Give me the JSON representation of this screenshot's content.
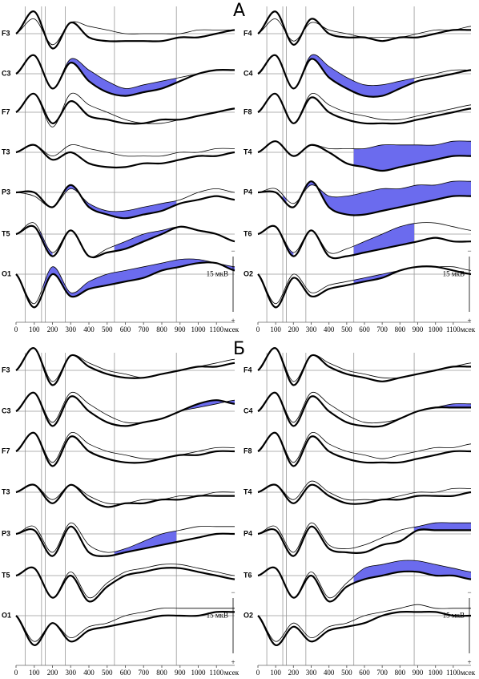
{
  "sections": [
    "А",
    "Б"
  ],
  "chart_data": [
    {
      "type": "line",
      "x": [
        0,
        100,
        200,
        300,
        400,
        500,
        600,
        700,
        800,
        900,
        1000,
        1100,
        1200
      ],
      "xlim": [
        0,
        1200
      ],
      "xticks": [
        0,
        100,
        200,
        300,
        400,
        500,
        600,
        700,
        800,
        900,
        1000,
        1100
      ],
      "xlabel": "мсек",
      "vlines": [
        50,
        140,
        160,
        270,
        540,
        880
      ],
      "line_color": "#000",
      "fill_color": "#6b6bee",
      "scale_value": 15,
      "scale_label": "15 мкВ",
      "scale_minus": "−",
      "scale_plus": "+",
      "channels": [
        {
          "label": "F3",
          "thin": [
            0,
            -4,
            3,
            -3,
            -2,
            -1,
            0,
            0,
            0,
            0,
            -1,
            -1,
            -1
          ],
          "thick": [
            0,
            -6,
            4,
            -3,
            1,
            2,
            2,
            2,
            2,
            1,
            1,
            0,
            -1
          ],
          "shaded": []
        },
        {
          "label": "C3",
          "thin": [
            0,
            -5,
            4,
            -4,
            -1,
            2,
            4,
            3,
            2,
            1,
            0,
            -1,
            -1
          ],
          "thick": [
            0,
            -5,
            4,
            -3,
            2,
            5,
            6,
            5,
            4,
            2,
            0,
            -1,
            -1
          ],
          "shaded": [
            [
              270,
              880
            ]
          ]
        },
        {
          "label": "F7",
          "thin": [
            0,
            -5,
            4,
            -5,
            -2,
            0,
            2,
            3,
            3,
            2,
            1,
            0,
            -1
          ],
          "thick": [
            0,
            -5,
            3,
            -3,
            1,
            2,
            3,
            3,
            2,
            2,
            1,
            0,
            -1
          ],
          "shaded": []
        },
        {
          "label": "T3",
          "thin": [
            0,
            -2,
            1,
            -2,
            -1,
            0,
            1,
            1,
            1,
            0,
            0,
            -1,
            -1
          ],
          "thick": [
            0,
            -2,
            2,
            0,
            3,
            4,
            4,
            3,
            3,
            2,
            1,
            1,
            0
          ],
          "shaded": []
        },
        {
          "label": "P3",
          "thin": [
            0,
            1,
            4,
            -1,
            3,
            5,
            5,
            4,
            3,
            2,
            0,
            -1,
            0
          ],
          "thick": [
            0,
            0,
            4,
            -2,
            4,
            6,
            7,
            6,
            5,
            3,
            2,
            1,
            2
          ],
          "shaded": [
            [
              270,
              880
            ]
          ]
        },
        {
          "label": "T5",
          "thin": [
            0,
            -3,
            5,
            -1,
            6,
            4,
            2,
            0,
            -1,
            -2,
            -1,
            0,
            2
          ],
          "thick": [
            0,
            -2,
            6,
            -1,
            6,
            5,
            4,
            2,
            0,
            -2,
            -1,
            0,
            2
          ],
          "shaded": [
            [
              130,
              200
            ],
            [
              540,
              880
            ]
          ]
        },
        {
          "label": "O1",
          "thin": [
            0,
            8,
            -2,
            5,
            2,
            0,
            -1,
            -2,
            -3,
            -4,
            -4,
            -3,
            -2
          ],
          "thick": [
            0,
            9,
            0,
            6,
            4,
            3,
            2,
            1,
            -1,
            -2,
            -3,
            -3,
            -1
          ],
          "shaded": [
            [
              150,
              1200
            ]
          ]
        }
      ]
    },
    {
      "type": "line",
      "x": [
        0,
        100,
        200,
        300,
        400,
        500,
        600,
        700,
        800,
        900,
        1000,
        1100,
        1200
      ],
      "xlim": [
        0,
        1200
      ],
      "xticks": [
        0,
        100,
        200,
        300,
        400,
        500,
        600,
        700,
        800,
        900,
        1000,
        1100
      ],
      "xlabel": "мсек",
      "vlines": [
        50,
        140,
        160,
        270,
        540,
        880
      ],
      "line_color": "#000",
      "fill_color": "#6b6bee",
      "scale_value": 15,
      "scale_label": "15 мкВ",
      "scale_minus": "−",
      "scale_plus": "+",
      "channels": [
        {
          "label": "F4",
          "thin": [
            0,
            -4,
            2,
            -3,
            -1,
            0,
            1,
            1,
            1,
            0,
            -1,
            -1,
            -2
          ],
          "thick": [
            0,
            -6,
            3,
            -4,
            0,
            1,
            1,
            2,
            1,
            1,
            0,
            -1,
            -1
          ],
          "shaded": []
        },
        {
          "label": "C4",
          "thin": [
            0,
            -5,
            4,
            -5,
            -2,
            1,
            3,
            3,
            2,
            1,
            0,
            -1,
            -1
          ],
          "thick": [
            0,
            -5,
            4,
            -4,
            1,
            4,
            6,
            6,
            4,
            2,
            1,
            0,
            -1
          ],
          "shaded": [
            [
              270,
              880
            ]
          ]
        },
        {
          "label": "F8",
          "thin": [
            0,
            -5,
            3,
            -5,
            -2,
            0,
            1,
            2,
            2,
            1,
            0,
            -1,
            -2
          ],
          "thick": [
            0,
            -5,
            3,
            -4,
            0,
            2,
            3,
            3,
            3,
            2,
            1,
            0,
            -1
          ],
          "shaded": []
        },
        {
          "label": "T4",
          "thin": [
            0,
            -3,
            1,
            -2,
            -1,
            -1,
            -1,
            -2,
            -2,
            -2,
            -2,
            -3,
            -3
          ],
          "thick": [
            0,
            -3,
            1,
            -2,
            0,
            3,
            4,
            5,
            4,
            3,
            2,
            1,
            1
          ],
          "shaded": [
            [
              540,
              1200
            ]
          ]
        },
        {
          "label": "P4",
          "thin": [
            0,
            -1,
            3,
            -2,
            1,
            1,
            0,
            -1,
            -1,
            -2,
            -2,
            -3,
            -3
          ],
          "thick": [
            0,
            0,
            4,
            -3,
            4,
            6,
            6,
            5,
            4,
            3,
            2,
            1,
            1
          ],
          "shaded": [
            [
              140,
              160
            ],
            [
              270,
              1200
            ]
          ]
        },
        {
          "label": "T6",
          "thin": [
            0,
            -2,
            5,
            -1,
            5,
            4,
            2,
            0,
            -2,
            -3,
            -3,
            -2,
            -1
          ],
          "thick": [
            0,
            -2,
            6,
            -1,
            6,
            6,
            5,
            4,
            3,
            2,
            1,
            2,
            2
          ],
          "shaded": [
            [
              140,
              200
            ],
            [
              540,
              880
            ]
          ]
        },
        {
          "label": "O2",
          "thin": [
            0,
            8,
            0,
            5,
            3,
            2,
            1,
            0,
            -1,
            -2,
            -2,
            -2,
            -1
          ],
          "thick": [
            0,
            9,
            1,
            6,
            4,
            3,
            2,
            1,
            -1,
            -2,
            -2,
            -1,
            0
          ],
          "shaded": [
            [
              540,
              880
            ]
          ]
        }
      ]
    },
    {
      "type": "line",
      "x": [
        0,
        100,
        200,
        300,
        400,
        500,
        600,
        700,
        800,
        900,
        1000,
        1100,
        1200
      ],
      "xlim": [
        0,
        1200
      ],
      "xticks": [
        0,
        100,
        200,
        300,
        400,
        500,
        600,
        700,
        800,
        900,
        1000,
        1100
      ],
      "xlabel": "мсек",
      "vlines": [
        50,
        140,
        160,
        270,
        540,
        880
      ],
      "line_color": "#000",
      "fill_color": "#6b6bee",
      "scale_value": 15,
      "scale_label": "15 мкВ",
      "scale_minus": "−",
      "scale_plus": "+",
      "channels": [
        {
          "label": "F3",
          "thin": [
            0,
            -6,
            3,
            -4,
            -2,
            0,
            1,
            2,
            1,
            0,
            -1,
            -2,
            -3
          ],
          "thick": [
            0,
            -6,
            4,
            -4,
            -1,
            1,
            2,
            2,
            1,
            0,
            -1,
            -1,
            -2
          ],
          "shaded": []
        },
        {
          "label": "C3",
          "thin": [
            0,
            -5,
            3,
            -5,
            -2,
            1,
            3,
            3,
            2,
            0,
            -1,
            -2,
            -3
          ],
          "thick": [
            0,
            -5,
            4,
            -4,
            0,
            3,
            4,
            3,
            2,
            0,
            -2,
            -3,
            -2
          ],
          "shaded": [
            [
              880,
              1200
            ]
          ]
        },
        {
          "label": "F7",
          "thin": [
            0,
            -5,
            3,
            -5,
            -2,
            0,
            1,
            2,
            2,
            1,
            0,
            -1,
            -1
          ],
          "thick": [
            0,
            -5,
            4,
            -4,
            0,
            2,
            3,
            3,
            2,
            1,
            1,
            0,
            0
          ],
          "shaded": []
        },
        {
          "label": "T3",
          "thin": [
            0,
            -2,
            2,
            -2,
            1,
            3,
            3,
            2,
            2,
            1,
            1,
            0,
            0
          ],
          "thick": [
            0,
            -2,
            3,
            -2,
            2,
            4,
            3,
            3,
            2,
            2,
            1,
            1,
            1
          ],
          "shaded": []
        },
        {
          "label": "P3",
          "thin": [
            0,
            -2,
            5,
            -3,
            3,
            5,
            4,
            2,
            0,
            -1,
            -2,
            -2,
            -2
          ],
          "thick": [
            0,
            -1,
            6,
            -2,
            5,
            6,
            5,
            4,
            3,
            2,
            1,
            0,
            0
          ],
          "shaded": [
            [
              540,
              880
            ]
          ]
        },
        {
          "label": "T5",
          "thin": [
            0,
            -2,
            6,
            -1,
            6,
            2,
            -1,
            -2,
            -3,
            -3,
            -2,
            -1,
            0
          ],
          "thick": [
            0,
            -2,
            6,
            0,
            7,
            3,
            0,
            -1,
            -2,
            -2,
            -1,
            0,
            1
          ],
          "shaded": []
        },
        {
          "label": "O1",
          "thin": [
            0,
            7,
            2,
            6,
            3,
            2,
            0,
            -1,
            -2,
            -2,
            -2,
            -2,
            -2
          ],
          "thick": [
            0,
            8,
            2,
            7,
            4,
            3,
            2,
            1,
            0,
            0,
            0,
            -1,
            -1
          ],
          "shaded": []
        }
      ]
    },
    {
      "type": "line",
      "x": [
        0,
        100,
        200,
        300,
        400,
        500,
        600,
        700,
        800,
        900,
        1000,
        1100,
        1200
      ],
      "xlim": [
        0,
        1200
      ],
      "xticks": [
        0,
        100,
        200,
        300,
        400,
        500,
        600,
        700,
        800,
        900,
        1000,
        1100
      ],
      "xlabel": "мсек",
      "vlines": [
        50,
        140,
        160,
        270,
        540,
        880
      ],
      "line_color": "#000",
      "fill_color": "#6b6bee",
      "scale_value": 15,
      "scale_label": "15 мкВ",
      "scale_minus": "−",
      "scale_plus": "+",
      "channels": [
        {
          "label": "F4",
          "thin": [
            0,
            -6,
            3,
            -4,
            -2,
            0,
            1,
            2,
            2,
            1,
            0,
            -1,
            -2
          ],
          "thick": [
            0,
            -6,
            4,
            -4,
            -1,
            1,
            2,
            3,
            2,
            1,
            0,
            -1,
            -1
          ],
          "shaded": []
        },
        {
          "label": "C4",
          "thin": [
            0,
            -5,
            3,
            -5,
            -2,
            1,
            3,
            3,
            2,
            0,
            -1,
            -2,
            -2
          ],
          "thick": [
            0,
            -5,
            4,
            -4,
            0,
            3,
            4,
            4,
            2,
            0,
            -1,
            -1,
            -1
          ],
          "shaded": [
            [
              880,
              1200
            ]
          ]
        },
        {
          "label": "F8",
          "thin": [
            0,
            -5,
            3,
            -5,
            -2,
            0,
            1,
            2,
            1,
            0,
            -1,
            -1,
            -2
          ],
          "thick": [
            0,
            -5,
            4,
            -4,
            0,
            2,
            3,
            3,
            3,
            2,
            1,
            0,
            0
          ],
          "shaded": []
        },
        {
          "label": "T4",
          "thin": [
            0,
            -2,
            2,
            -3,
            0,
            2,
            2,
            2,
            1,
            0,
            0,
            -1,
            -1
          ],
          "thick": [
            0,
            -2,
            3,
            -2,
            1,
            3,
            3,
            2,
            2,
            1,
            1,
            1,
            0
          ],
          "shaded": []
        },
        {
          "label": "P4",
          "thin": [
            0,
            -2,
            5,
            -3,
            3,
            4,
            3,
            1,
            -1,
            -2,
            -3,
            -3,
            -3
          ],
          "thick": [
            0,
            -1,
            6,
            -2,
            4,
            5,
            5,
            3,
            2,
            -1,
            -1,
            -1,
            -1
          ],
          "shaded": [
            [
              880,
              1200
            ]
          ]
        },
        {
          "label": "T6",
          "thin": [
            0,
            -2,
            6,
            -1,
            6,
            2,
            -2,
            -3,
            -4,
            -4,
            -3,
            -2,
            -1
          ],
          "thick": [
            0,
            -2,
            6,
            0,
            7,
            3,
            1,
            0,
            -1,
            -1,
            0,
            0,
            1
          ],
          "shaded": [
            [
              540,
              1200
            ]
          ]
        },
        {
          "label": "O2",
          "thin": [
            0,
            7,
            2,
            6,
            3,
            2,
            0,
            -1,
            -2,
            -3,
            -2,
            -2,
            -2
          ],
          "thick": [
            0,
            8,
            3,
            7,
            4,
            3,
            2,
            0,
            -1,
            -1,
            -1,
            0,
            0
          ],
          "shaded": []
        }
      ]
    }
  ]
}
